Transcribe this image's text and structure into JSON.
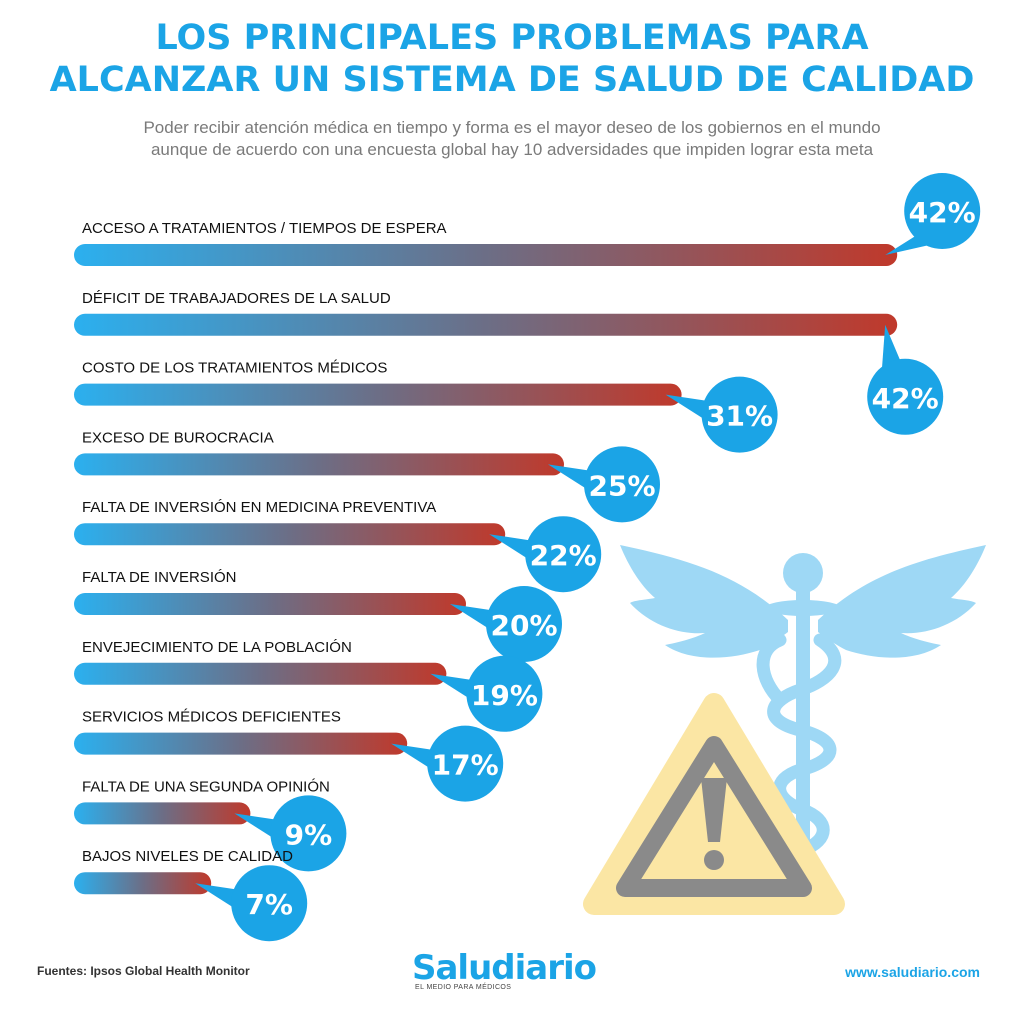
{
  "header": {
    "title_line1": "LOS PRINCIPALES PROBLEMAS PARA",
    "title_line2": "ALCANZAR UN SISTEMA DE SALUD DE CALIDAD",
    "subtitle_line1": "Poder recibir atención médica en tiempo y forma es el mayor deseo de los gobiernos en el mundo",
    "subtitle_line2": "aunque de acuerdo con una encuesta global hay 10 adversidades que impiden lograr esta meta"
  },
  "chart_data": {
    "type": "bar",
    "orientation": "horizontal",
    "categories": [
      "ACCESO A TRATAMIENTOS / TIEMPOS DE ESPERA",
      "DÉFICIT DE TRABAJADORES DE LA SALUD",
      "COSTO DE LOS TRATAMIENTOS MÉDICOS",
      "EXCESO DE BUROCRACIA",
      "FALTA DE INVERSIÓN EN MEDICINA PREVENTIVA",
      "FALTA DE INVERSIÓN",
      "ENVEJECIMIENTO DE LA POBLACIÓN",
      "SERVICIOS MÉDICOS DEFICIENTES",
      "FALTA DE UNA SEGUNDA OPINIÓN",
      "BAJOS NIVELES DE CALIDAD"
    ],
    "values": [
      42,
      42,
      31,
      25,
      22,
      20,
      19,
      17,
      9,
      7
    ],
    "value_labels": [
      "42%",
      "42%",
      "31%",
      "25%",
      "22%",
      "20%",
      "19%",
      "17%",
      "9%",
      "7%"
    ],
    "label_position": [
      "above",
      "below",
      "right",
      "right",
      "right",
      "right",
      "right",
      "right",
      "right",
      "right"
    ],
    "bar_gradient": [
      "#2bb0ef",
      "#6c6e86",
      "#c0392b"
    ],
    "bubble_color": "#1ba4e6"
  },
  "footer": {
    "source": "Fuentes: Ipsos Global Health Monitor",
    "logo_name": "Saludiario",
    "logo_tagline": "EL MEDIO PARA MÉDICOS",
    "website": "www.saludiario.com"
  },
  "colors": {
    "accent": "#1ba4e6",
    "caduceus": "#9ed8f5",
    "warning_fill": "#fbe6a4",
    "warning_stroke": "#8a8a8a"
  },
  "icons": [
    "caduceus-icon",
    "warning-icon"
  ]
}
